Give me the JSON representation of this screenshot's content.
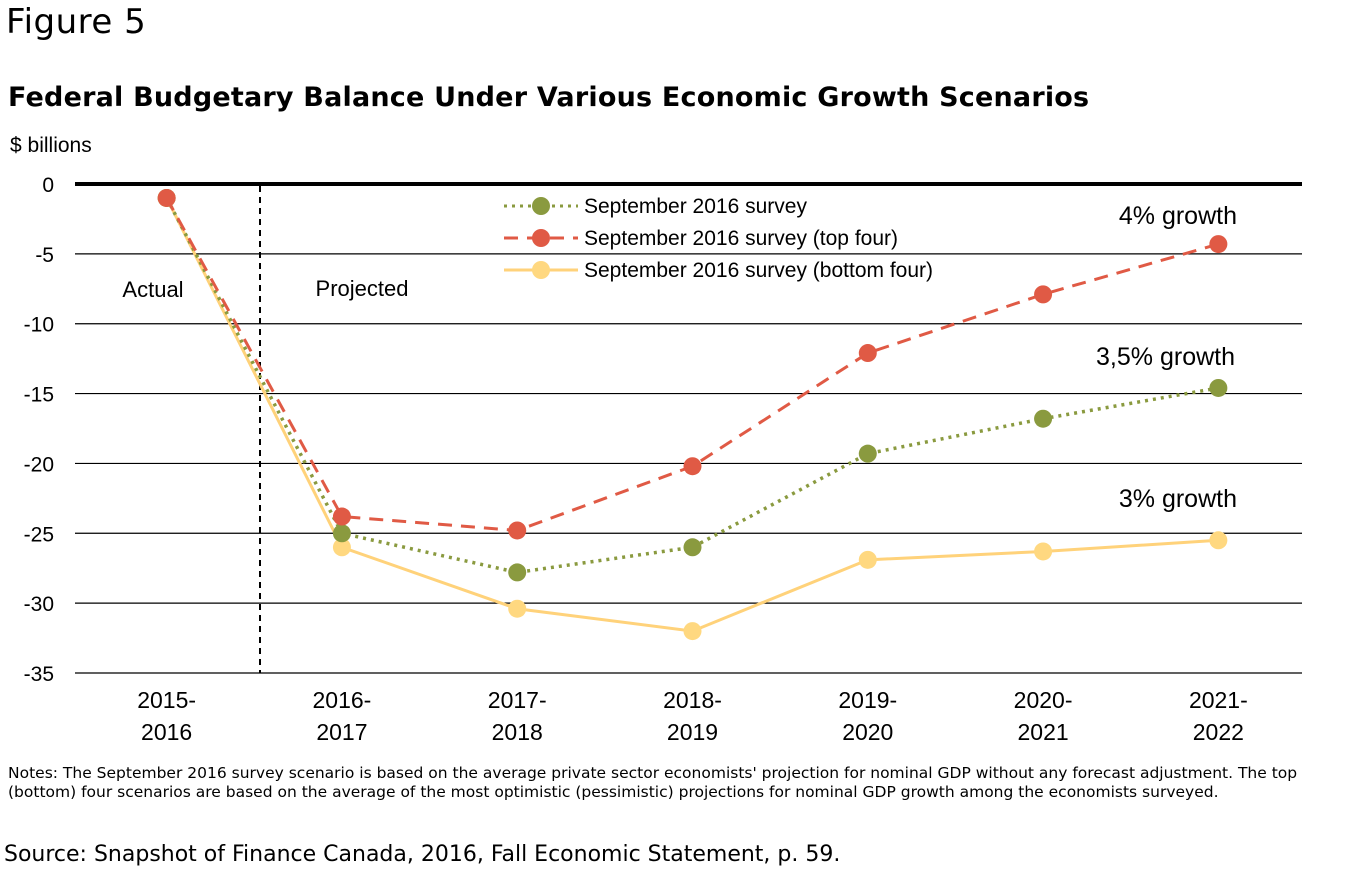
{
  "figure_label": "Figure 5",
  "notes": "Notes: The September 2016 survey scenario is based on the average private sector economists' projection for nominal GDP without any forecast adjustment. The top (bottom) four scenarios are based on the average of the most optimistic (pessimistic) projections for nominal GDP growth among the economists surveyed.",
  "source": "Source: Snapshot of Finance Canada, 2016, Fall Economic Statement, p. 59.",
  "colors": {
    "survey": "#8a9a3f",
    "top_four": "#e05a45",
    "bottom_four": "#ffd27a",
    "bottom_four_marker": "#ffd880"
  },
  "chart_data": {
    "type": "line",
    "title": "Federal Budgetary Balance Under Various Economic Growth Scenarios",
    "ylabel": "$ billions",
    "xlabel": "",
    "categories": [
      [
        "2015-",
        "2016"
      ],
      [
        "2016-",
        "2017"
      ],
      [
        "2017-",
        "2018"
      ],
      [
        "2018-",
        "2019"
      ],
      [
        "2019-",
        "2020"
      ],
      [
        "2020-",
        "2021"
      ],
      [
        "2021-",
        "2022"
      ]
    ],
    "ylim": [
      -35,
      0
    ],
    "yticks": [
      0,
      -5,
      -10,
      -15,
      -20,
      -25,
      -30,
      -35
    ],
    "grid": true,
    "legend_position": "top-center",
    "series": [
      {
        "name": "September 2016 survey",
        "style": "dotted",
        "color": "#8a9a3f",
        "values": [
          -1.0,
          -25.0,
          -27.8,
          -26.0,
          -19.3,
          -16.8,
          -14.6
        ]
      },
      {
        "name": "September 2016 survey (top four)",
        "style": "dashed",
        "color": "#e05a45",
        "values": [
          -1.0,
          -23.8,
          -24.8,
          -20.2,
          -12.1,
          -7.9,
          -4.3
        ]
      },
      {
        "name": "September 2016 survey (bottom four)",
        "style": "solid",
        "color": "#ffd27a",
        "values": [
          -1.0,
          -26.0,
          -30.4,
          -32.0,
          -26.9,
          -26.3,
          -25.5
        ]
      }
    ],
    "annotations": {
      "actual": "Actual",
      "projected": "Projected",
      "growth_4": "4% growth",
      "growth_35": "3,5% growth",
      "growth_3": "3% growth"
    }
  }
}
